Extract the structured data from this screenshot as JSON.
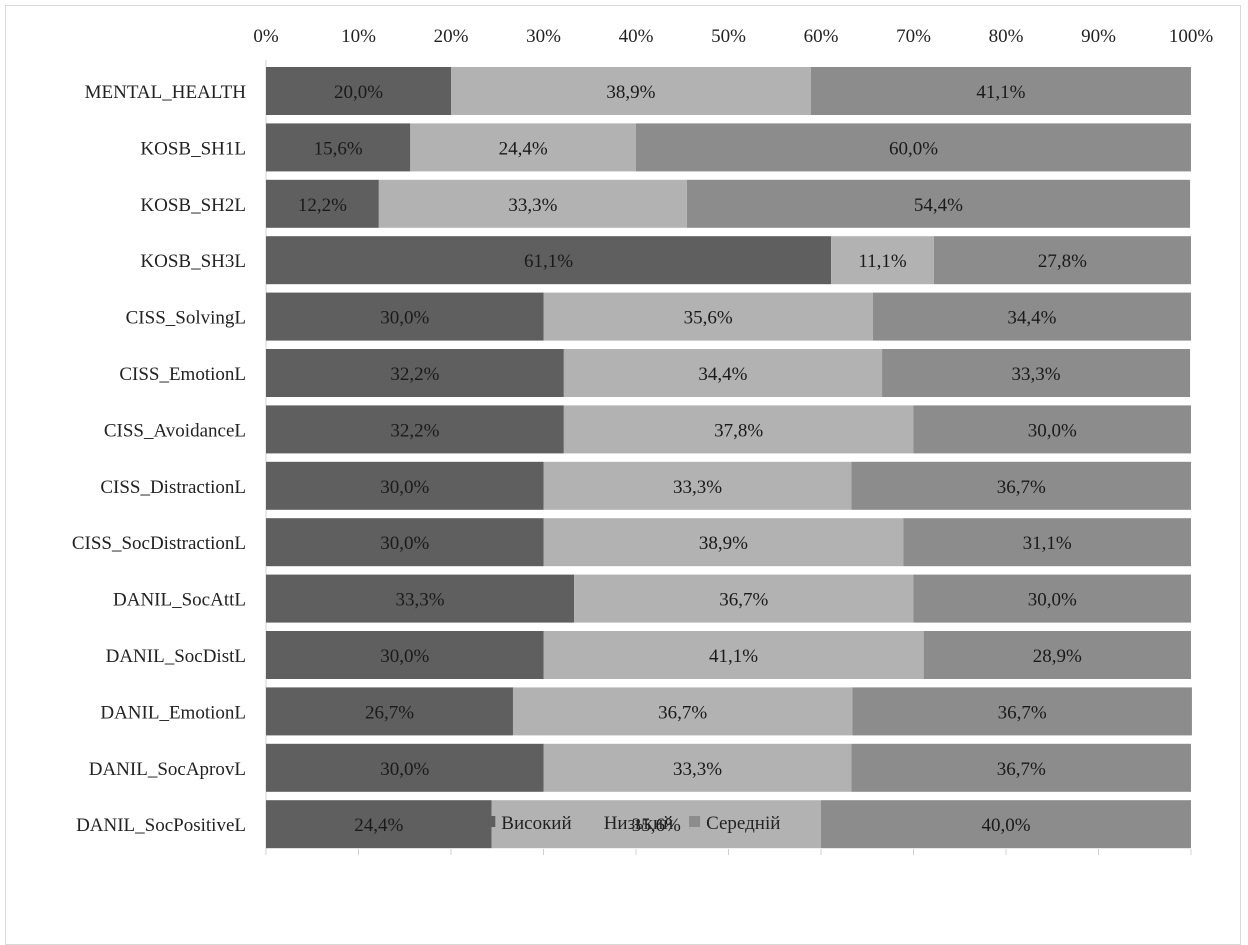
{
  "chart_data": {
    "type": "bar",
    "orientation": "horizontal",
    "stacked": "percent",
    "title": "",
    "xlabel": "",
    "ylabel": "",
    "xlim": [
      0,
      100
    ],
    "x_ticks": [
      "0%",
      "10%",
      "20%",
      "30%",
      "40%",
      "50%",
      "60%",
      "70%",
      "80%",
      "90%",
      "100%"
    ],
    "categories": [
      "MENTAL_HEALTH",
      "KOSB_SH1L",
      "KOSB_SH2L",
      "KOSB_SH3L",
      "CISS_SolvingL",
      "CISS_EmotionL",
      "CISS_AvoidanceL",
      "CISS_DistractionL",
      "CISS_SocDistractionL",
      "DANIL_SocAttL",
      "DANIL_SocDistL",
      "DANIL_EmotionL",
      "DANIL_SocAprovL",
      "DANIL_SocPositiveL"
    ],
    "series": [
      {
        "name": "Високий",
        "color": "#5f5f5f",
        "values": [
          20.0,
          15.6,
          12.2,
          61.1,
          30.0,
          32.2,
          32.2,
          30.0,
          30.0,
          33.3,
          30.0,
          26.7,
          30.0,
          24.4
        ],
        "labels": [
          "20,0%",
          "15,6%",
          "12,2%",
          "61,1%",
          "30,0%",
          "32,2%",
          "32,2%",
          "30,0%",
          "30,0%",
          "33,3%",
          "30,0%",
          "26,7%",
          "30,0%",
          "24,4%"
        ]
      },
      {
        "name": "Низький",
        "color": "#b2b2b2",
        "values": [
          38.9,
          24.4,
          33.3,
          11.1,
          35.6,
          34.4,
          37.8,
          33.3,
          38.9,
          36.7,
          41.1,
          36.7,
          33.3,
          35.6
        ],
        "labels": [
          "38,9%",
          "24,4%",
          "33,3%",
          "11,1%",
          "35,6%",
          "34,4%",
          "37,8%",
          "33,3%",
          "38,9%",
          "36,7%",
          "41,1%",
          "36,7%",
          "33,3%",
          "35,6%"
        ]
      },
      {
        "name": "Середній",
        "color": "#8c8c8c",
        "values": [
          41.1,
          60.0,
          54.4,
          27.8,
          34.4,
          33.3,
          30.0,
          36.7,
          31.1,
          30.0,
          28.9,
          36.7,
          36.7,
          40.0
        ],
        "labels": [
          "41,1%",
          "60,0%",
          "54,4%",
          "27,8%",
          "34,4%",
          "33,3%",
          "30,0%",
          "36,7%",
          "31,1%",
          "30,0%",
          "28,9%",
          "36,7%",
          "36,7%",
          "40,0%"
        ]
      }
    ],
    "legend": {
      "position": "bottom"
    },
    "grid": true
  }
}
